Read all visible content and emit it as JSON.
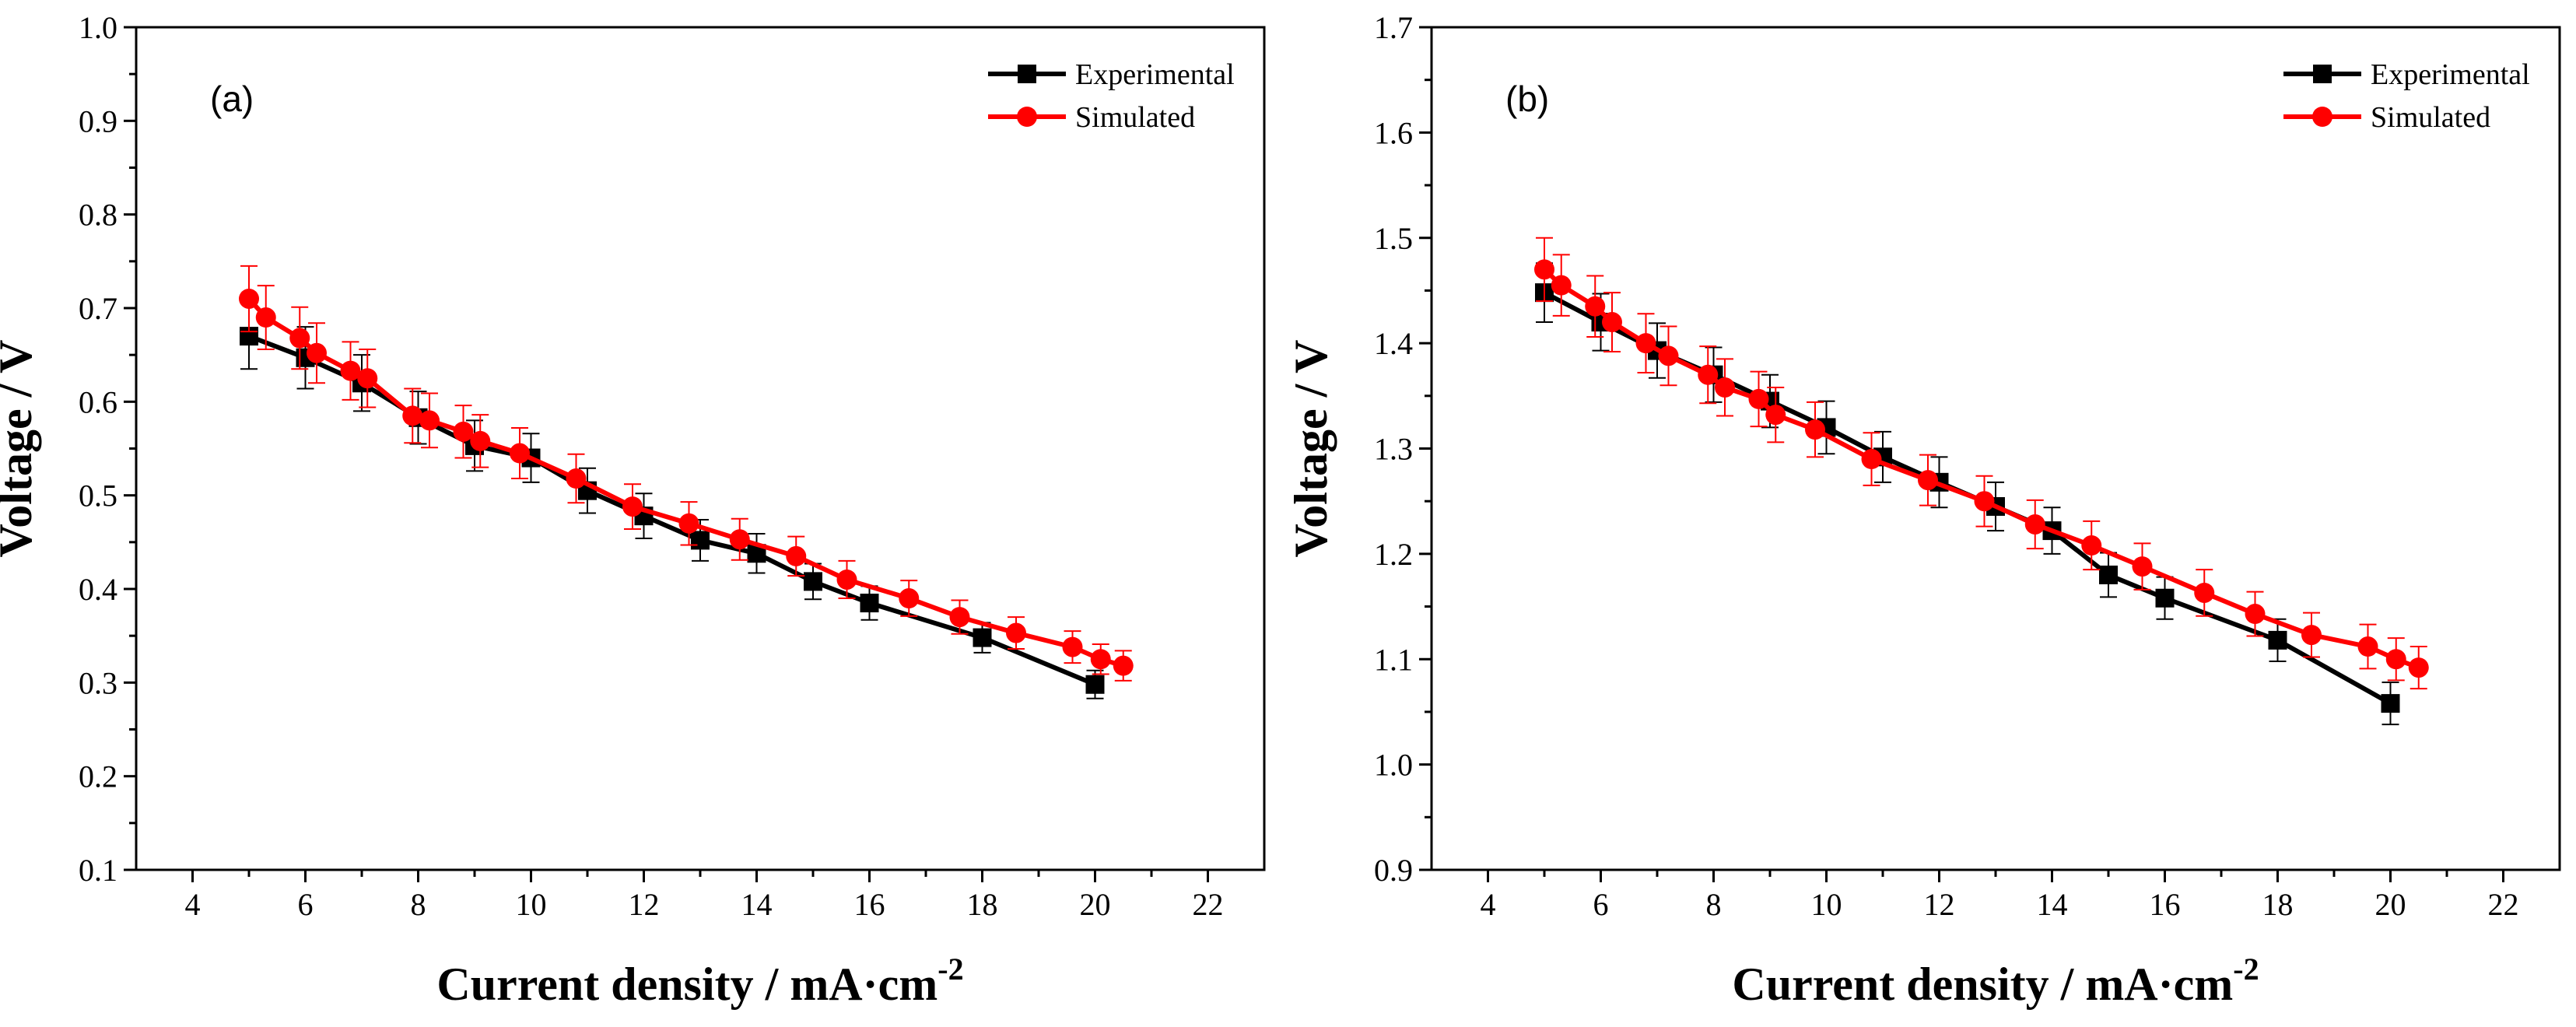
{
  "colors": {
    "experimental": "#000000",
    "simulated": "#ff0000",
    "axis": "#000000"
  },
  "chart_data": [
    {
      "type": "line",
      "panel_label": "(a)",
      "xlabel": "Current density / mA·cm",
      "xlabel_superscript": "-2",
      "ylabel": "Voltage / V",
      "xlim": [
        3,
        23
      ],
      "ylim": [
        0.1,
        1.0
      ],
      "xticks": [
        4,
        6,
        8,
        10,
        12,
        14,
        16,
        18,
        20,
        22
      ],
      "xtick_labels": [
        "4",
        "6",
        "8",
        "10",
        "12",
        "14",
        "16",
        "18",
        "20",
        "22"
      ],
      "yticks": [
        0.1,
        0.2,
        0.3,
        0.4,
        0.5,
        0.6,
        0.7,
        0.8,
        0.9,
        1.0
      ],
      "ytick_labels": [
        "0.1",
        "0.2",
        "0.3",
        "0.4",
        "0.5",
        "0.6",
        "0.7",
        "0.8",
        "0.9",
        "1.0"
      ],
      "legend_position": "top-right",
      "series": [
        {
          "name": "Experimental",
          "marker": "square",
          "color": "#000000",
          "x": [
            5,
            6,
            7,
            8,
            9,
            10,
            11,
            12,
            13,
            14,
            15,
            16,
            18,
            20
          ],
          "y": [
            0.67,
            0.647,
            0.62,
            0.583,
            0.553,
            0.54,
            0.505,
            0.478,
            0.452,
            0.438,
            0.408,
            0.385,
            0.348,
            0.298
          ],
          "err": [
            0.035,
            0.033,
            0.03,
            0.028,
            0.027,
            0.026,
            0.024,
            0.024,
            0.022,
            0.021,
            0.019,
            0.018,
            0.016,
            0.015
          ]
        },
        {
          "name": "Simulated",
          "marker": "circle",
          "color": "#ff0000",
          "x": [
            5,
            5.3,
            5.9,
            6.2,
            6.8,
            7.1,
            7.9,
            8.2,
            8.8,
            9.1,
            9.8,
            10.8,
            11.8,
            12.8,
            13.7,
            14.7,
            15.6,
            16.7,
            17.6,
            18.6,
            19.6,
            20.1,
            20.5
          ],
          "y": [
            0.71,
            0.69,
            0.668,
            0.652,
            0.633,
            0.625,
            0.585,
            0.58,
            0.568,
            0.558,
            0.545,
            0.518,
            0.488,
            0.47,
            0.453,
            0.435,
            0.41,
            0.39,
            0.37,
            0.353,
            0.338,
            0.325,
            0.318
          ],
          "err": [
            0.035,
            0.034,
            0.033,
            0.032,
            0.031,
            0.031,
            0.029,
            0.029,
            0.028,
            0.028,
            0.027,
            0.026,
            0.024,
            0.023,
            0.022,
            0.021,
            0.02,
            0.019,
            0.018,
            0.017,
            0.017,
            0.016,
            0.016
          ]
        }
      ]
    },
    {
      "type": "line",
      "panel_label": "(b)",
      "xlabel": "Current density / mA·cm",
      "xlabel_superscript": "-2",
      "ylabel": "Voltage / V",
      "xlim": [
        3,
        23
      ],
      "ylim": [
        0.9,
        1.7
      ],
      "xticks": [
        4,
        6,
        8,
        10,
        12,
        14,
        16,
        18,
        20,
        22
      ],
      "xtick_labels": [
        "4",
        "6",
        "8",
        "10",
        "12",
        "14",
        "16",
        "18",
        "20",
        "22"
      ],
      "yticks": [
        0.9,
        1.0,
        1.1,
        1.2,
        1.3,
        1.4,
        1.5,
        1.6,
        1.7
      ],
      "ytick_labels": [
        "0.9",
        "1.0",
        "1.1",
        "1.2",
        "1.3",
        "1.4",
        "1.5",
        "1.6",
        "1.7"
      ],
      "legend_position": "top-right",
      "series": [
        {
          "name": "Experimental",
          "marker": "square",
          "color": "#000000",
          "x": [
            5,
            6,
            7,
            8,
            9,
            10,
            11,
            12,
            13,
            14,
            15,
            16,
            18,
            20
          ],
          "y": [
            1.448,
            1.42,
            1.393,
            1.37,
            1.345,
            1.32,
            1.292,
            1.268,
            1.245,
            1.222,
            1.18,
            1.158,
            1.118,
            1.058
          ],
          "err": [
            0.028,
            0.027,
            0.026,
            0.026,
            0.025,
            0.025,
            0.024,
            0.024,
            0.023,
            0.022,
            0.021,
            0.02,
            0.02,
            0.02
          ]
        },
        {
          "name": "Simulated",
          "marker": "circle",
          "color": "#ff0000",
          "x": [
            5,
            5.3,
            5.9,
            6.2,
            6.8,
            7.2,
            7.9,
            8.2,
            8.8,
            9.1,
            9.8,
            10.8,
            11.8,
            12.8,
            13.7,
            14.7,
            15.6,
            16.7,
            17.6,
            18.6,
            19.6,
            20.1,
            20.5
          ],
          "y": [
            1.47,
            1.455,
            1.435,
            1.42,
            1.4,
            1.388,
            1.37,
            1.358,
            1.347,
            1.332,
            1.318,
            1.29,
            1.27,
            1.25,
            1.228,
            1.208,
            1.188,
            1.163,
            1.143,
            1.123,
            1.112,
            1.1,
            1.092
          ],
          "err": [
            0.03,
            0.029,
            0.029,
            0.028,
            0.028,
            0.028,
            0.027,
            0.027,
            0.026,
            0.026,
            0.026,
            0.025,
            0.024,
            0.024,
            0.023,
            0.023,
            0.022,
            0.022,
            0.021,
            0.021,
            0.021,
            0.02,
            0.02
          ]
        }
      ]
    }
  ]
}
